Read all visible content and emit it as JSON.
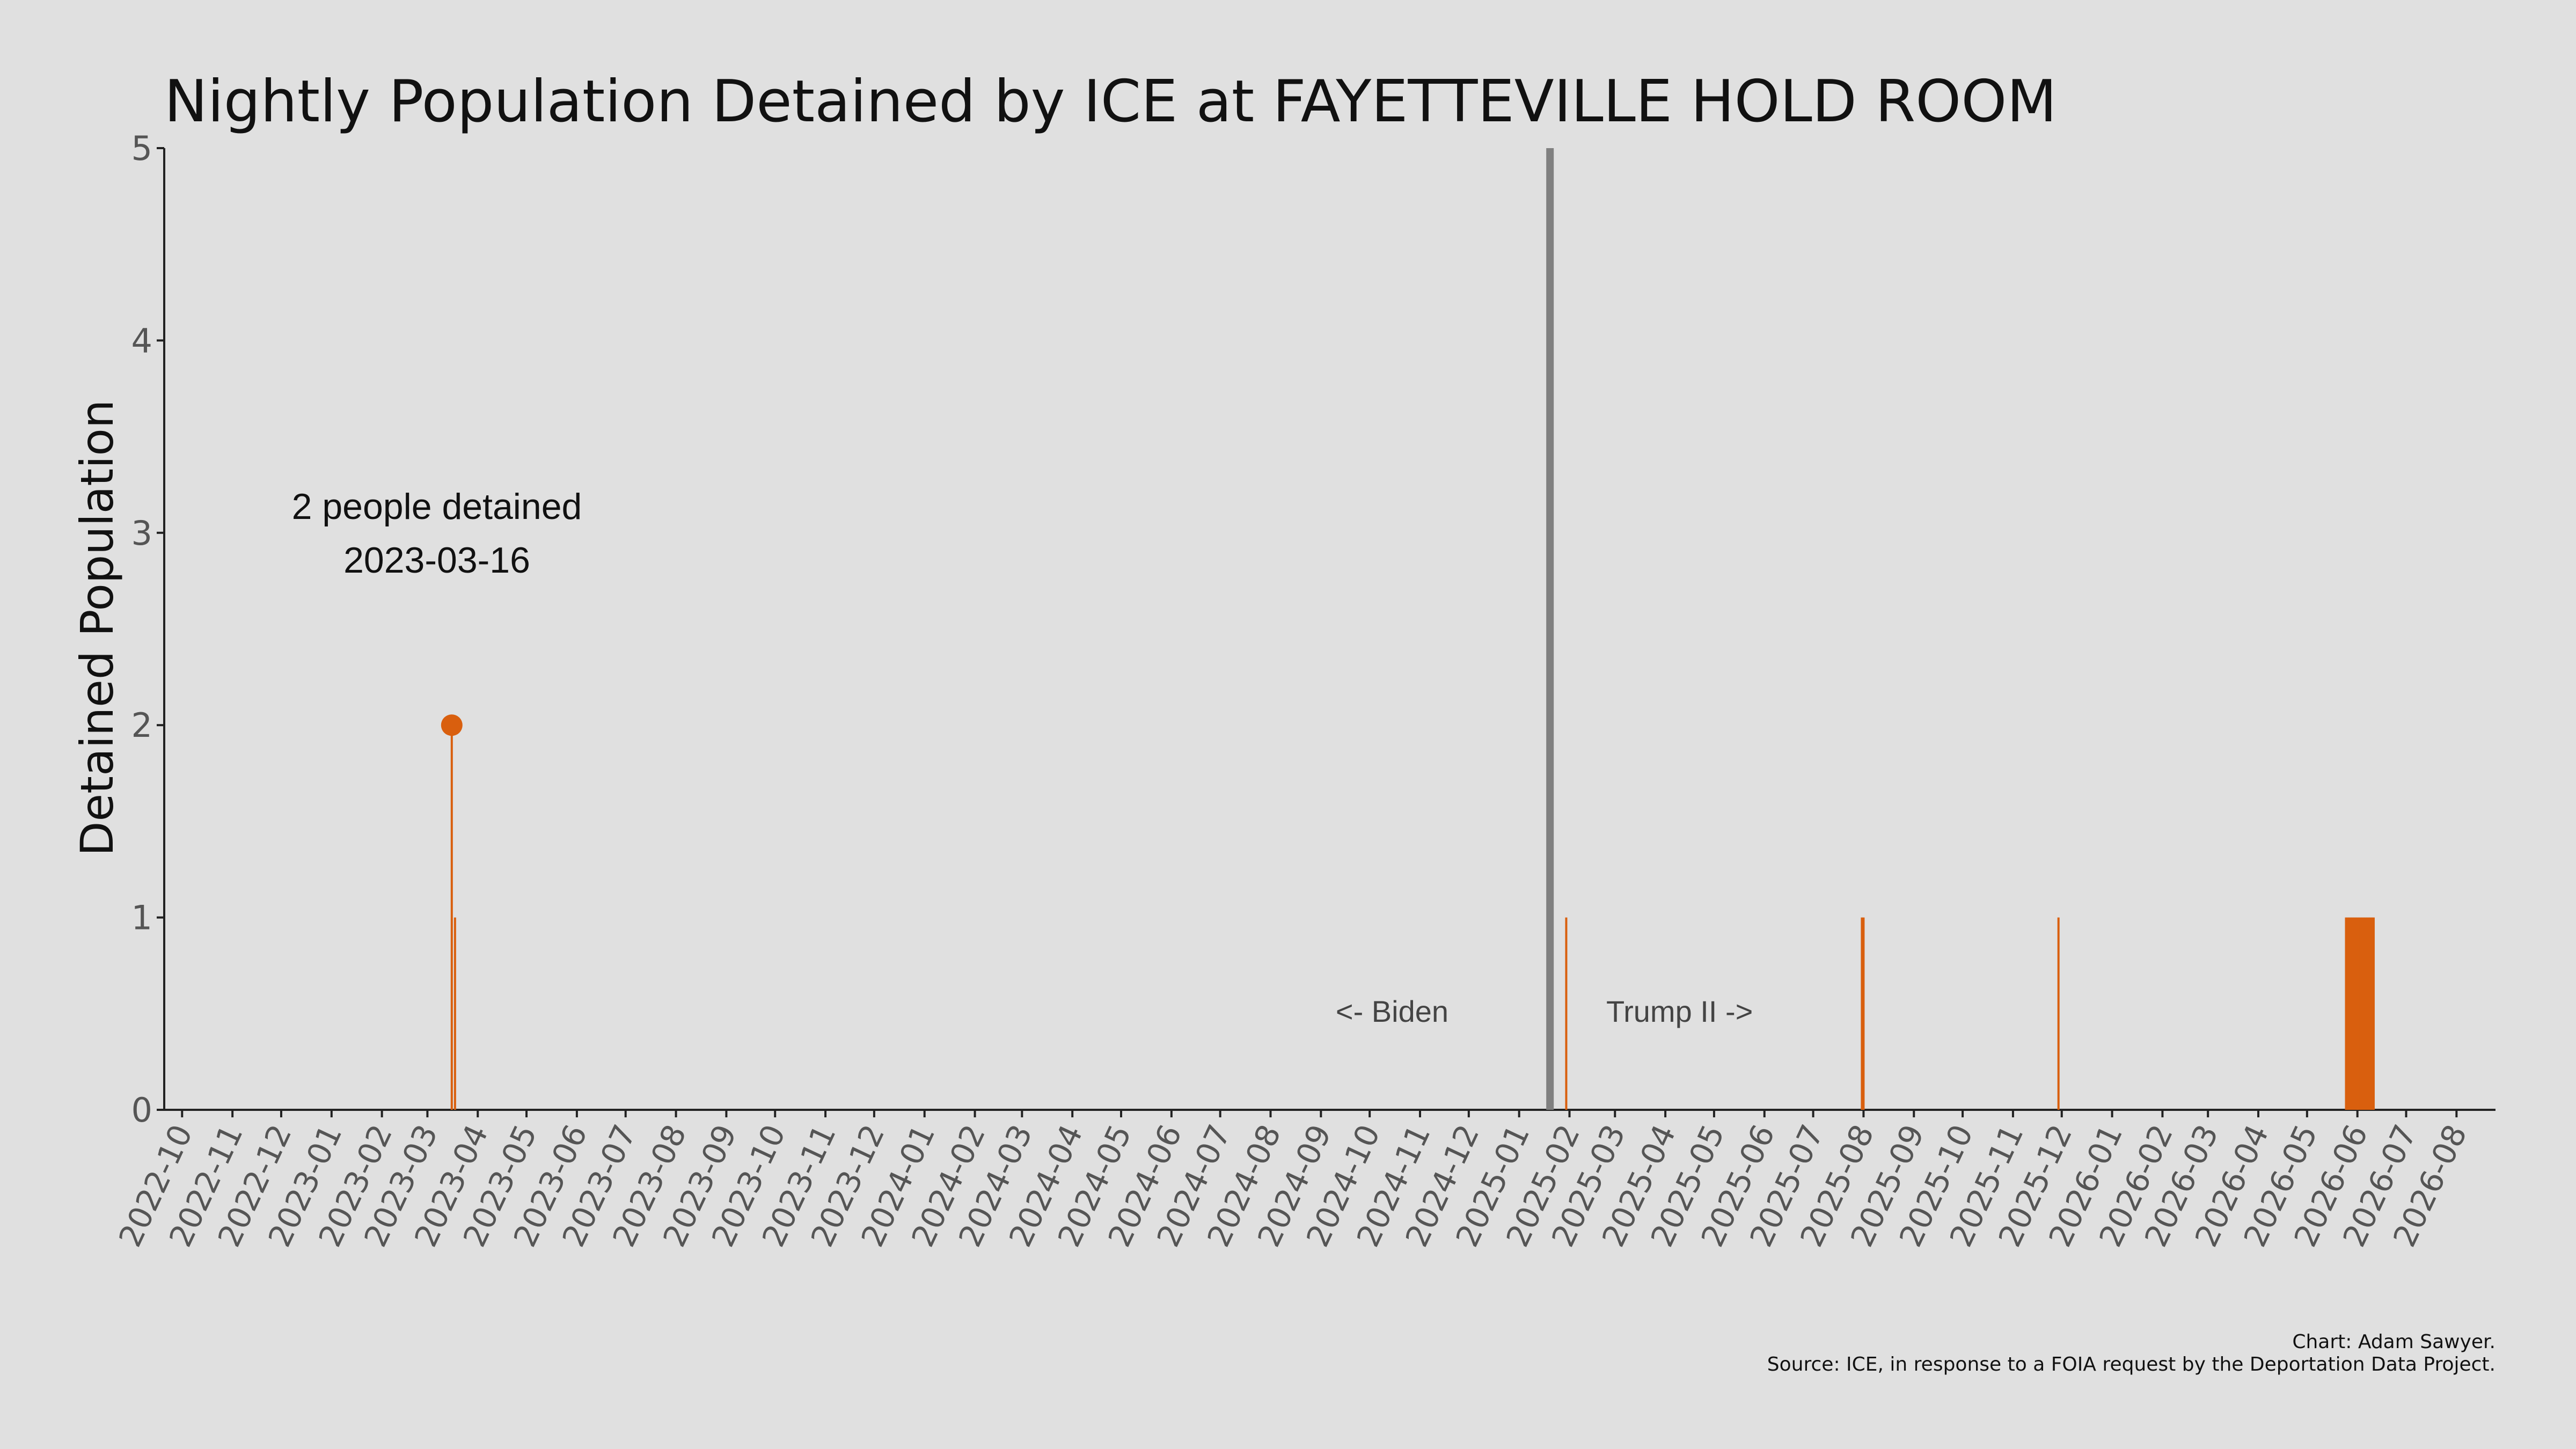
{
  "chart_data": {
    "type": "bar",
    "title": "Nightly Population Detained by ICE at FAYETTEVILLE HOLD ROOM",
    "ylabel": "Detained Population",
    "xlabel": "",
    "ylim": [
      0,
      5
    ],
    "yticks": [
      "0",
      "1",
      "2",
      "3",
      "4",
      "5"
    ],
    "xlim": [
      "2022-09-20",
      "2026-08-25"
    ],
    "xticks": [
      "2022-10",
      "2022-11",
      "2022-12",
      "2023-01",
      "2023-02",
      "2023-03",
      "2023-04",
      "2023-05",
      "2023-06",
      "2023-07",
      "2023-08",
      "2023-09",
      "2023-10",
      "2023-11",
      "2023-12",
      "2024-01",
      "2024-02",
      "2024-03",
      "2024-04",
      "2024-05",
      "2024-06",
      "2024-07",
      "2024-08",
      "2024-09",
      "2024-10",
      "2024-11",
      "2024-12",
      "2025-01",
      "2025-02",
      "2025-03",
      "2025-04",
      "2025-05",
      "2025-06",
      "2025-07",
      "2025-08",
      "2025-09",
      "2025-10",
      "2025-11",
      "2025-12",
      "2026-01",
      "2026-02",
      "2026-03",
      "2026-04",
      "2026-05",
      "2026-06",
      "2026-07",
      "2026-08"
    ],
    "grid": false,
    "bar_color": "#d95f0e",
    "series": [
      {
        "x": [
          "2023-03-16",
          "2023-03-18",
          "2025-01-30",
          "2025-07-31",
          "2025-08-01",
          "2025-11-29",
          "2026-05-25",
          "2026-05-26",
          "2026-05-27",
          "2026-05-28",
          "2026-05-29",
          "2026-05-30",
          "2026-05-31",
          "2026-06-01",
          "2026-06-02",
          "2026-06-03",
          "2026-06-04",
          "2026-06-05",
          "2026-06-06",
          "2026-06-07",
          "2026-06-08",
          "2026-06-09",
          "2026-06-10",
          "2026-06-11"
        ],
        "values": [
          2,
          1,
          1,
          1,
          1,
          1,
          1,
          1,
          1,
          1,
          1,
          1,
          1,
          1,
          1,
          1,
          1,
          1,
          1,
          1,
          1,
          1,
          1,
          1
        ]
      }
    ],
    "peak": {
      "x": "2023-03-16",
      "value": 2,
      "color": "#d95f0e"
    },
    "annotation": {
      "line1": "2 people detained",
      "line2": "2023-03-16"
    },
    "inauguration": {
      "x": "2025-01-20",
      "color": "#808080"
    },
    "era_labels": {
      "left": "<- Biden",
      "right": "Trump II ->"
    }
  },
  "credits": {
    "line1": "Chart: Adam Sawyer.",
    "line2": "Source: ICE, in response to a FOIA request by the Deportation Data Project."
  }
}
